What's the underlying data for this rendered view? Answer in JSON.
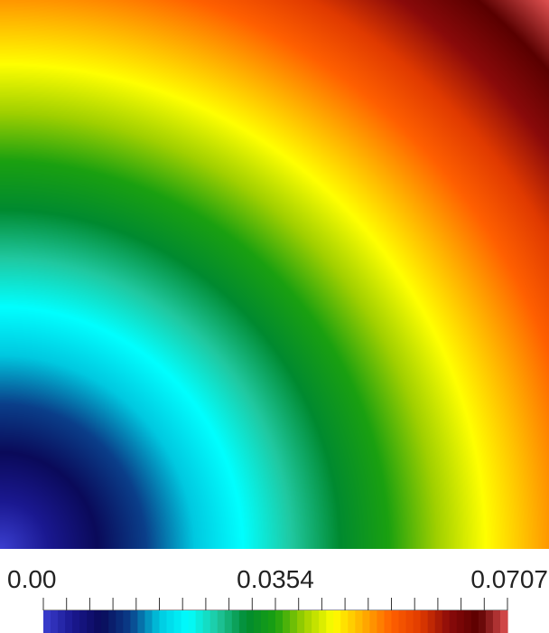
{
  "chart_data": {
    "type": "heatmap",
    "title": "",
    "xlabel": "",
    "ylabel": "",
    "field": {
      "description_of_values": "scalar field increasing radially from the bottom-left corner (0,0) to the top-right corner",
      "x_range": [
        0,
        1
      ],
      "y_range": [
        0,
        1
      ],
      "value_range": [
        0.0,
        0.0707
      ]
    },
    "colorbar": {
      "min": 0.0,
      "mid": 0.0354,
      "max": 0.0707,
      "tick_labels": [
        "0.00",
        "0.0354",
        "0.0707"
      ],
      "num_minor_ticks": 21,
      "num_bands": 64,
      "colormap": [
        "#3b3fd0",
        "#1a1890",
        "#0a0a5a",
        "#0a3f8a",
        "#00c8e0",
        "#00ffff",
        "#20c8a0",
        "#008a30",
        "#1aa010",
        "#a0d000",
        "#ffff00",
        "#ffb000",
        "#ff6000",
        "#e03a00",
        "#8a0a0a",
        "#5a0000",
        "#e05050"
      ]
    }
  }
}
